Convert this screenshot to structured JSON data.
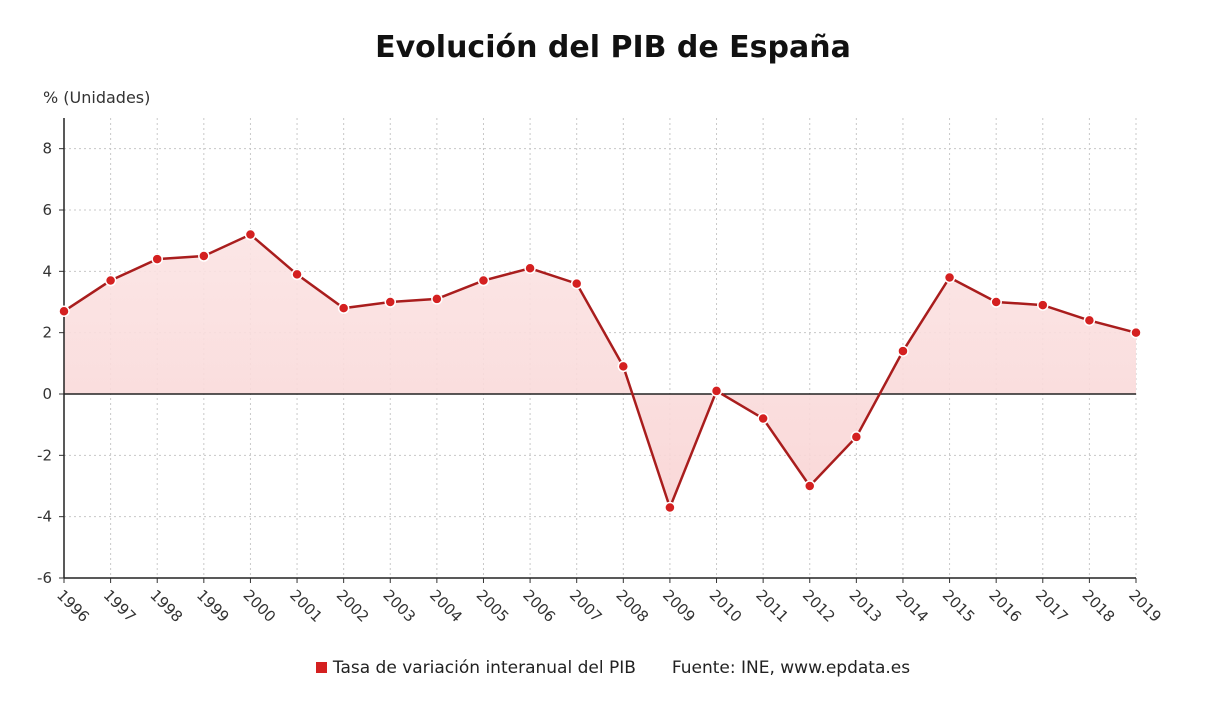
{
  "chart_data": {
    "type": "area",
    "title": "Evolución del PIB de España",
    "ylabel": "% (Unidades)",
    "xlabel": "",
    "categories": [
      "1996",
      "1997",
      "1998",
      "1999",
      "2000",
      "2001",
      "2002",
      "2003",
      "2004",
      "2005",
      "2006",
      "2007",
      "2008",
      "2009",
      "2010",
      "2011",
      "2012",
      "2013",
      "2014",
      "2015",
      "2016",
      "2017",
      "2018",
      "2019"
    ],
    "series": [
      {
        "name": "Tasa de variación interanual del PIB",
        "values": [
          2.7,
          3.7,
          4.4,
          4.5,
          5.2,
          3.9,
          2.8,
          3.0,
          3.1,
          3.7,
          4.1,
          3.6,
          0.9,
          -3.7,
          0.1,
          -0.8,
          -3.0,
          -1.4,
          1.4,
          3.8,
          3.0,
          2.9,
          2.4,
          2.0
        ]
      }
    ],
    "ylim": [
      -6,
      9
    ],
    "yticks": [
      -6,
      -4,
      -2,
      0,
      2,
      4,
      6,
      8
    ],
    "grid": true,
    "legend_position": "bottom",
    "source": "Fuente: INE, www.epdata.es",
    "colors": {
      "line": "#a91d1d",
      "marker": "#d42020",
      "fill": "#f9d4d4"
    }
  }
}
